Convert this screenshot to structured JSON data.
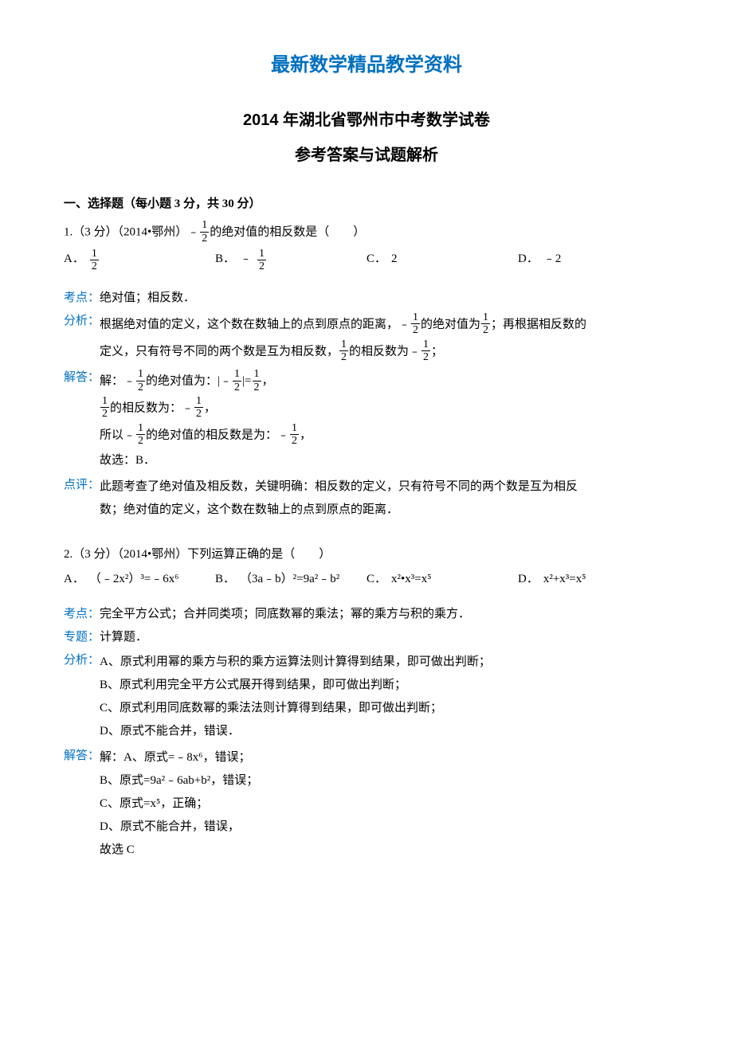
{
  "header": {
    "mainTitle": "最新数学精品教学资料",
    "examTitle": "2014 年湖北省鄂州市中考数学试卷",
    "subTitle": "参考答案与试题解析"
  },
  "section1": {
    "heading": "一、选择题（每小题 3 分，共 30 分）"
  },
  "q1": {
    "prefix": "1.（3 分）（2014•鄂州）",
    "stem_a": "﹣",
    "stem_b": "的绝对值的相反数是（　　）",
    "choiceA_letter": "A．",
    "choiceB_letter": "B．",
    "choiceB_prefix": "﹣",
    "choiceC_letter": "C．",
    "choiceC_text": "2",
    "choiceD_letter": "D．",
    "choiceD_text": "﹣2",
    "kaodian_label": "考点：",
    "kaodian_text": "绝对值；相反数．",
    "fenxi_label": "分析：",
    "fenxi_a": "根据绝对值的定义，这个数在数轴上的点到原点的距离，﹣",
    "fenxi_b": "的绝对值为",
    "fenxi_c": "；再根据相反数的",
    "fenxi_d": "定义，只有符号不同的两个数是互为相反数，",
    "fenxi_e": "的相反数为﹣",
    "fenxi_f": "；",
    "jieda_label": "解答：",
    "jieda_a": "解：﹣",
    "jieda_b": "的绝对值为：|﹣",
    "jieda_c": "|=",
    "jieda_d": "，",
    "jieda_e": "的相反数为：﹣",
    "jieda_f": "，",
    "jieda_g": "所以﹣",
    "jieda_h": "的绝对值的相反数是为：﹣",
    "jieda_i": "，",
    "jieda_j": "故选：B．",
    "dianping_label": "点评：",
    "dianping_a": "此题考查了绝对值及相反数，关键明确：相反数的定义，只有符号不同的两个数是互为相反",
    "dianping_b": "数；绝对值的定义，这个数在数轴上的点到原点的距离．"
  },
  "q2": {
    "stem": "2.（3 分）（2014•鄂州）下列运算正确的是（　　）",
    "choiceA_letter": "A．",
    "choiceA_text": "（﹣2x²）³=﹣6x⁶",
    "choiceB_letter": "B．",
    "choiceB_text": "（3a﹣b）²=9a²﹣b²",
    "choiceC_letter": "C．",
    "choiceC_text": "x²•x³=x⁵",
    "choiceD_letter": "D．",
    "choiceD_text": "x²+x³=x⁵",
    "kaodian_label": "考点：",
    "kaodian_text": "完全平方公式；合并同类项；同底数幂的乘法；幂的乘方与积的乘方．",
    "zhuanti_label": "专题：",
    "zhuanti_text": "计算题．",
    "fenxi_label": "分析：",
    "fenxi_a": "A、原式利用幂的乘方与积的乘方运算法则计算得到结果，即可做出判断；",
    "fenxi_b": "B、原式利用完全平方公式展开得到结果，即可做出判断；",
    "fenxi_c": "C、原式利用同底数幂的乘法法则计算得到结果，即可做出判断；",
    "fenxi_d": "D、原式不能合并，错误．",
    "jieda_label": "解答：",
    "jieda_a": "解：A、原式=﹣8x⁶，错误；",
    "jieda_b": "B、原式=9a²﹣6ab+b²，错误；",
    "jieda_c": "C、原式=x⁵，正确；",
    "jieda_d": "D、原式不能合并，错误，",
    "jieda_e": "故选 C"
  },
  "frac": {
    "num": "1",
    "den": "2"
  }
}
